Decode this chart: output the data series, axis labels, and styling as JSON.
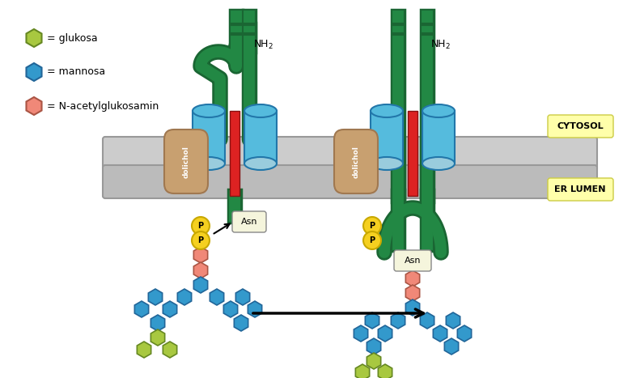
{
  "background": "#ffffff",
  "legend": {
    "glukosa_color": "#a8c840",
    "mannosa_color": "#3399cc",
    "nacetyl_color": "#f08878",
    "glukosa_label": "= glukosa",
    "mannosa_label": "= mannosa",
    "nacetyl_label": "= N-acetylglukosamin"
  },
  "green_tube_color": "#228844",
  "green_tube_dark": "#1a6633",
  "blue_cyl_color": "#55bbdd",
  "blue_cyl_dark": "#2277aa",
  "red_bar_color": "#dd2222"
}
